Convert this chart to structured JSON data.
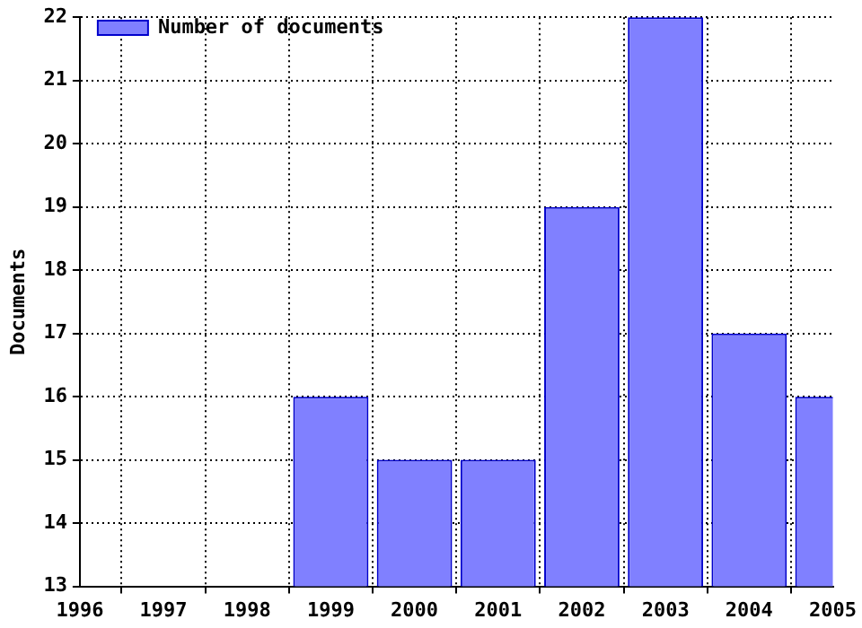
{
  "chart_data": {
    "type": "bar",
    "ylabel": "Documents",
    "x": [
      1999,
      2000,
      2001,
      2002,
      2003,
      2004,
      2005
    ],
    "series": [
      {
        "name": "Number of documents",
        "color": "#8080ff",
        "values": [
          16,
          15,
          15,
          19,
          22,
          17,
          16
        ]
      }
    ],
    "xlim": [
      1996,
      2005
    ],
    "xticks": [
      1996,
      1997,
      1998,
      1999,
      2000,
      2001,
      2002,
      2003,
      2004,
      2005
    ],
    "ylim": [
      13,
      22
    ],
    "yticks": [
      13,
      14,
      15,
      16,
      17,
      18,
      19,
      20,
      21,
      22
    ],
    "grid": true,
    "legend": "top left"
  }
}
